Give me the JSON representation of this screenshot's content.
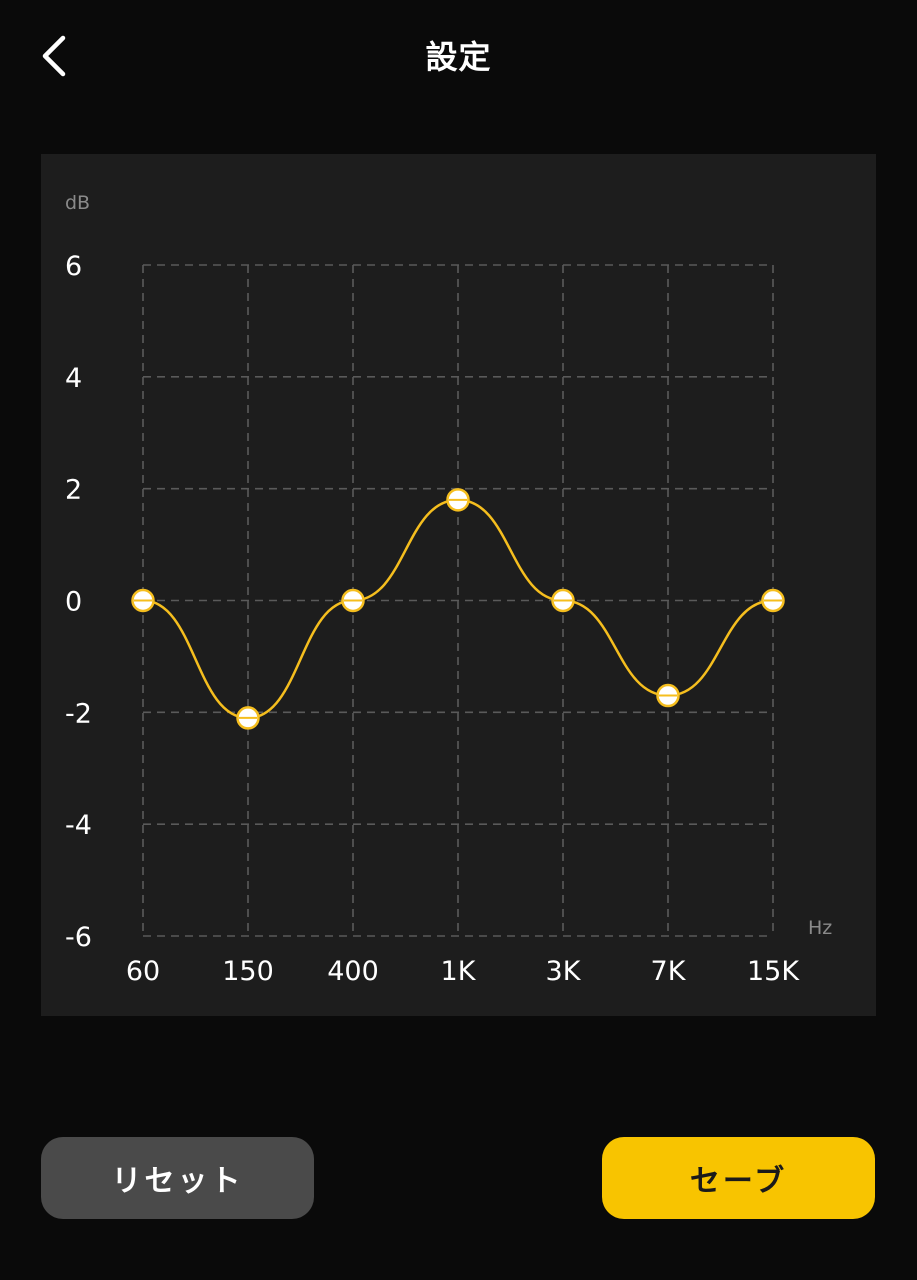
{
  "header": {
    "title": "設定",
    "back_icon": "chevron-left-icon"
  },
  "chart_data": {
    "type": "line",
    "ylabel": "dB",
    "xlabel": "Hz",
    "categories": [
      "60",
      "150",
      "400",
      "1K",
      "3K",
      "7K",
      "15K"
    ],
    "values": [
      0,
      -2.1,
      0,
      1.8,
      0,
      -1.7,
      0
    ],
    "ylim": [
      -6,
      6
    ],
    "yticks": [
      "6",
      "4",
      "2",
      "0",
      "-2",
      "-4",
      "-6"
    ],
    "ytick_values": [
      6,
      4,
      2,
      0,
      -2,
      -4,
      -6
    ],
    "grid": true,
    "line_color": "#f5be1e",
    "handle_color": "#ffffff"
  },
  "footer": {
    "reset_label": "リセット",
    "save_label": "セーブ"
  },
  "colors": {
    "background": "#0a0a0a",
    "panel": "#1d1d1d",
    "accent": "#f8c400",
    "reset_bg": "#4a4a4a"
  }
}
